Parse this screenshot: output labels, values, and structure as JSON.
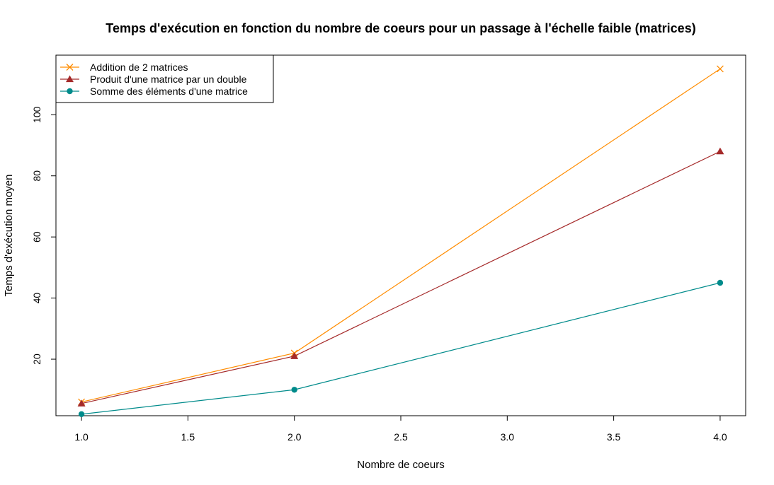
{
  "chart_data": {
    "type": "line",
    "title": "Temps d'exécution en fonction du nombre de coeurs pour un passage à l'échelle faible (matrices)",
    "xlabel": "Nombre de coeurs",
    "ylabel": "Temps d'exécution moyen",
    "xlim": [
      0.88,
      4.12
    ],
    "ylim": [
      1.5,
      119.5
    ],
    "x_ticks": [
      1.0,
      1.5,
      2.0,
      2.5,
      3.0,
      3.5,
      4.0
    ],
    "x_tick_labels": [
      "1.0",
      "1.5",
      "2.0",
      "2.5",
      "3.0",
      "3.5",
      "4.0"
    ],
    "y_ticks": [
      20,
      40,
      60,
      80,
      100
    ],
    "y_tick_labels": [
      "20",
      "40",
      "60",
      "80",
      "100"
    ],
    "x": [
      1,
      2,
      4
    ],
    "series": [
      {
        "name": "Addition de 2 matrices",
        "values": [
          6,
          22,
          115
        ],
        "color": "#FF8C00",
        "marker": "cross"
      },
      {
        "name": "Produit d'une matrice par un double",
        "values": [
          5.5,
          21,
          88
        ],
        "color": "#A52A2A",
        "marker": "triangle"
      },
      {
        "name": "Somme des éléments d'une matrice",
        "values": [
          2,
          10,
          45
        ],
        "color": "#008B8B",
        "marker": "circle"
      }
    ],
    "legend_position": "top-left",
    "grid": false
  }
}
